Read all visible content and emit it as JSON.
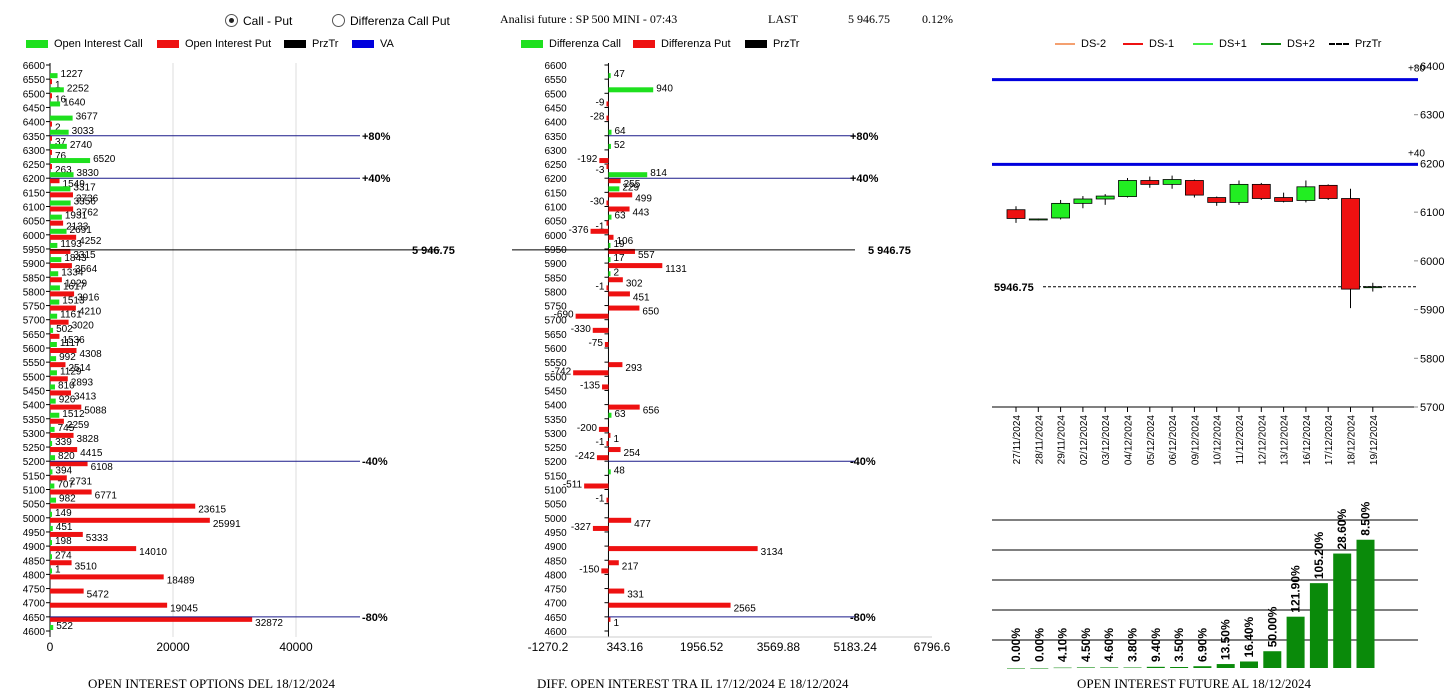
{
  "header": {
    "radio_call_put": "Call - Put",
    "radio_diff": "Differenza Call Put",
    "title": "Analisi future : SP 500 MINI - 07:43",
    "last_label": "LAST",
    "last_value": "5 946.75",
    "change": "0.12%"
  },
  "legend1": [
    {
      "label": "Open Interest Call",
      "color": "#1ee01e"
    },
    {
      "label": "Open Interest Put",
      "color": "#ee1111"
    },
    {
      "label": "PrzTr",
      "color": "#000000"
    },
    {
      "label": "VA",
      "color": "#0000dd"
    }
  ],
  "legend2": [
    {
      "label": "Differenza Call",
      "color": "#1ee01e"
    },
    {
      "label": "Differenza Put",
      "color": "#ee1111"
    },
    {
      "label": "PrzTr",
      "color": "#000000"
    }
  ],
  "legend3": [
    {
      "label": "DS-2",
      "color": "#f4a070",
      "style": "solid"
    },
    {
      "label": "DS-1",
      "color": "#ee1111",
      "style": "solid"
    },
    {
      "label": "DS+1",
      "color": "#44ee44",
      "style": "solid"
    },
    {
      "label": "DS+2",
      "color": "#118811",
      "style": "solid"
    },
    {
      "label": "PrzTr",
      "color": "#000000",
      "style": "dashed"
    }
  ],
  "footers": {
    "left": "OPEN INTEREST OPTIONS DEL 18/12/2024",
    "middle": "DIFF. OPEN INTEREST TRA IL 17/12/2024 E 18/12/2024",
    "right": "OPEN INTEREST FUTURE AL 18/12/2024"
  },
  "chart_data": [
    {
      "type": "bar",
      "orientation": "horizontal",
      "strikes": [
        "6600",
        "6550",
        "6500",
        "6450",
        "6400",
        "6350",
        "6300",
        "6250",
        "6200",
        "6150",
        "6100",
        "6050",
        "6000",
        "5950",
        "5900",
        "5850",
        "5800",
        "5750",
        "5700",
        "5650",
        "5600",
        "5550",
        "5500",
        "5450",
        "5400",
        "5350",
        "5300",
        "5250",
        "5200",
        "5150",
        "5100",
        "5050",
        "5000",
        "4950",
        "4900",
        "4850",
        "4800",
        "4750",
        "4700",
        "4650",
        "4600"
      ],
      "series": [
        {
          "name": "Open Interest Call",
          "values": [
            0,
            1227,
            2252,
            1640,
            3677,
            3033,
            2740,
            6520,
            3830,
            3317,
            3356,
            1931,
            2691,
            1193,
            1843,
            1334,
            1617,
            1513,
            1161,
            502,
            1117,
            992,
            1129,
            810,
            926,
            1512,
            745,
            339,
            820,
            394,
            707,
            982,
            149,
            451,
            198,
            274,
            1,
            0,
            0,
            0,
            522
          ]
        },
        {
          "name": "Open Interest Put",
          "values": [
            0,
            1,
            16,
            0,
            2,
            37,
            76,
            263,
            1549,
            3736,
            3762,
            2133,
            4252,
            3315,
            3564,
            1929,
            3916,
            4210,
            3020,
            1536,
            4308,
            2514,
            2893,
            3413,
            5088,
            2259,
            3828,
            4415,
            6108,
            2731,
            6771,
            23615,
            25991,
            5333,
            14010,
            3510,
            18489,
            5472,
            19045,
            32872,
            0
          ]
        }
      ],
      "reference_lines": [
        {
          "label": "+80%",
          "strike": 6350
        },
        {
          "label": "+40%",
          "strike": 6200
        },
        {
          "label": "5 946.75",
          "strike": 5946.75
        },
        {
          "label": "-40%",
          "strike": 5200
        },
        {
          "label": "-80%",
          "strike": 4650
        }
      ],
      "xticks": [
        "0",
        "20000",
        "40000"
      ],
      "xlim": [
        0,
        52000
      ]
    },
    {
      "type": "bar",
      "orientation": "horizontal",
      "strikes": [
        "6600",
        "6550",
        "6500",
        "6450",
        "6400",
        "6350",
        "6300",
        "6250",
        "6200",
        "6150",
        "6100",
        "6050",
        "6000",
        "5950",
        "5900",
        "5850",
        "5800",
        "5750",
        "5700",
        "5650",
        "5600",
        "5550",
        "5500",
        "5450",
        "5400",
        "5350",
        "5300",
        "5250",
        "5200",
        "5150",
        "5100",
        "5050",
        "5000",
        "4950",
        "4900",
        "4850",
        "4800",
        "4750",
        "4700",
        "4650",
        "4600"
      ],
      "values": [
        null,
        47,
        940,
        -9,
        -28,
        64,
        52,
        -192,
        814,
        229,
        -30,
        63,
        -376,
        19,
        17,
        2,
        -1,
        null,
        -690,
        -330,
        -75,
        null,
        -742,
        -135,
        null,
        63,
        -200,
        -1,
        -242,
        48,
        -511,
        -1,
        null,
        -327,
        null,
        null,
        -150,
        null,
        null,
        null,
        null
      ],
      "values_put": [
        null,
        null,
        null,
        null,
        null,
        null,
        null,
        -3,
        255,
        499,
        443,
        -1,
        106,
        557,
        1131,
        302,
        451,
        650,
        null,
        null,
        null,
        293,
        null,
        null,
        656,
        null,
        1,
        254,
        null,
        null,
        null,
        null,
        477,
        null,
        3134,
        217,
        null,
        331,
        2565,
        1,
        null
      ],
      "reference_lines": [
        {
          "label": "+80%",
          "strike": 6350
        },
        {
          "label": "+40%",
          "strike": 6200
        },
        {
          "label": "5 946.75",
          "strike": 5946.75
        },
        {
          "label": "-40%",
          "strike": 5200
        },
        {
          "label": "-80%",
          "strike": 4650
        }
      ],
      "xticks": [
        "-1270.2",
        "343.16",
        "1956.52",
        "3569.88",
        "5183.24",
        "6796.6"
      ],
      "xlim": [
        -1270.2,
        6796.6
      ]
    },
    {
      "type": "candlestick",
      "dates": [
        "27/11/2024",
        "28/11/2024",
        "29/11/2024",
        "02/12/2024",
        "03/12/2024",
        "04/12/2024",
        "05/12/2024",
        "06/12/2024",
        "09/12/2024",
        "10/12/2024",
        "11/12/2024",
        "12/12/2024",
        "13/12/2024",
        "16/12/2024",
        "17/12/2024",
        "18/12/2024",
        "19/12/2024"
      ],
      "candles": [
        {
          "o": 6105,
          "h": 6112,
          "l": 6078,
          "c": 6087
        },
        {
          "o": 6085,
          "h": 6087,
          "l": 6083,
          "c": 6086
        },
        {
          "o": 6088,
          "h": 6125,
          "l": 6085,
          "c": 6118
        },
        {
          "o": 6118,
          "h": 6133,
          "l": 6108,
          "c": 6127
        },
        {
          "o": 6127,
          "h": 6137,
          "l": 6115,
          "c": 6133
        },
        {
          "o": 6132,
          "h": 6170,
          "l": 6130,
          "c": 6165
        },
        {
          "o": 6165,
          "h": 6173,
          "l": 6150,
          "c": 6157
        },
        {
          "o": 6157,
          "h": 6175,
          "l": 6148,
          "c": 6167
        },
        {
          "o": 6165,
          "h": 6167,
          "l": 6130,
          "c": 6135
        },
        {
          "o": 6130,
          "h": 6132,
          "l": 6113,
          "c": 6120
        },
        {
          "o": 6120,
          "h": 6165,
          "l": 6115,
          "c": 6157
        },
        {
          "o": 6157,
          "h": 6160,
          "l": 6125,
          "c": 6128
        },
        {
          "o": 6130,
          "h": 6140,
          "l": 6120,
          "c": 6122
        },
        {
          "o": 6124,
          "h": 6165,
          "l": 6120,
          "c": 6152
        },
        {
          "o": 6155,
          "h": 6157,
          "l": 6125,
          "c": 6128
        },
        {
          "o": 6128,
          "h": 6148,
          "l": 5903,
          "c": 5942
        },
        {
          "o": 5947,
          "h": 5955,
          "l": 5937,
          "c": 5947
        }
      ],
      "hlines": [
        {
          "label": "+80",
          "value": 6372,
          "color": "#0000dd"
        },
        {
          "label": "+40",
          "value": 6198,
          "color": "#0000dd"
        }
      ],
      "last_label": "5946.75",
      "last_value": 5946.75,
      "yticks": [
        "5700",
        "5800",
        "5900",
        "6000",
        "6100",
        "6200",
        "6300",
        "6400"
      ],
      "ylim": [
        5700,
        6400
      ]
    },
    {
      "type": "bar",
      "labels": [
        "0.00%",
        "0.00%",
        "4.10%",
        "4.50%",
        "4.60%",
        "3.80%",
        "9.40%",
        "3.50%",
        "6.90%",
        "13.50%",
        "16.40%",
        "50.00%",
        "121.90%",
        "105.20%",
        "28.60%",
        "8.50%"
      ],
      "values": [
        0,
        0,
        0.2,
        0.3,
        0.3,
        0.25,
        0.6,
        0.5,
        0.9,
        2.0,
        3.3,
        8.5,
        26,
        43,
        58,
        65
      ],
      "ylim": [
        0,
        75
      ]
    }
  ]
}
